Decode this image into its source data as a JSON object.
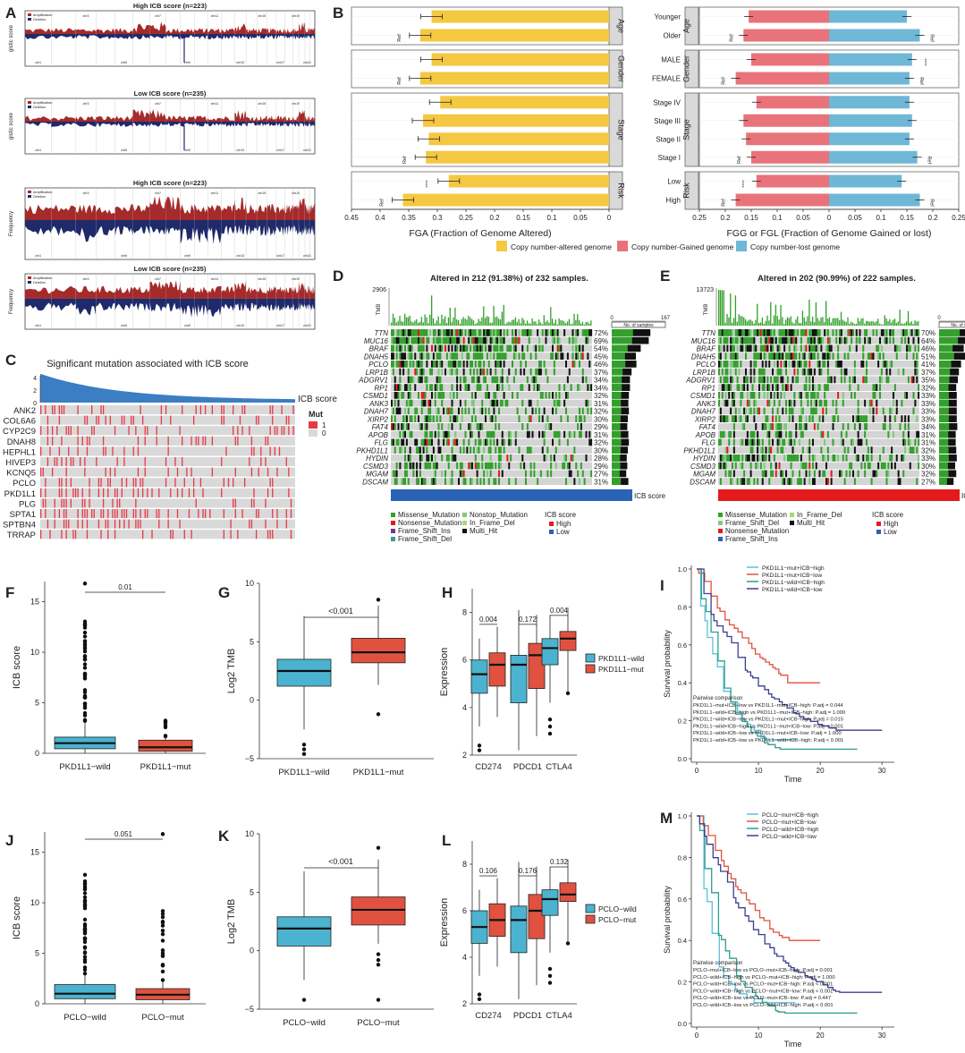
{
  "panel_labels": [
    "A",
    "B",
    "C",
    "D",
    "E",
    "F",
    "G",
    "H",
    "I",
    "J",
    "K",
    "L",
    "M"
  ],
  "panelA": {
    "titles": [
      "High ICB score (n=223)",
      "Low ICB score (n=235)",
      "High ICB score (n=223)",
      "Low ICB score (n=235)"
    ],
    "ylabel_gistic": "gistic score",
    "ylabel_freq": "Frequency",
    "legend": [
      "Amplification",
      "Deletion"
    ],
    "chromosomes": [
      "chr1",
      "chr2",
      "chr3",
      "chr4",
      "chr5",
      "chr6",
      "chr7",
      "chr8",
      "chr9",
      "chr10",
      "chr11",
      "chr12",
      "chr13",
      "chr14",
      "chr15",
      "chr16",
      "chr17",
      "chr18",
      "chr19",
      "chr20",
      "chr21",
      "chr22"
    ],
    "colors": {
      "amp": "#a52a2a",
      "del": "#1f2a6b"
    }
  },
  "panelB": {
    "chart_data": [
      {
        "type": "bar",
        "title": "",
        "xlabel": "FGA (Fraction of Genome Altered)",
        "xlim": [
          0.45,
          0
        ],
        "xticks": [
          "0.45",
          "0.4",
          "0.35",
          "0.3",
          "0.25",
          "0.2",
          "0.15",
          "0.1",
          "0.05",
          "0"
        ],
        "groups": [
          {
            "facet": "Age",
            "categories": [
              "Younger",
              "Older"
            ],
            "values": [
              0.31,
              0.33
            ],
            "sig": [
              "",
              "Ref"
            ]
          },
          {
            "facet": "Gender",
            "categories": [
              "MALE",
              "FEMALE"
            ],
            "values": [
              0.31,
              0.33
            ],
            "sig": [
              "",
              "Ref"
            ]
          },
          {
            "facet": "Stage",
            "categories": [
              "Stage IV",
              "Stage III",
              "Stage II",
              "Stage I"
            ],
            "values": [
              0.295,
              0.325,
              0.315,
              0.32
            ],
            "sig": [
              "",
              "",
              "",
              "Ref"
            ]
          },
          {
            "facet": "Risk",
            "categories": [
              "Low",
              "High"
            ],
            "values": [
              0.28,
              0.36
            ],
            "sig": [
              "****",
              "Ref"
            ]
          }
        ]
      },
      {
        "type": "bar",
        "xlabel": "FGG or FGL (Fraction of Genome Gained or lost)",
        "xlim": [
          -0.25,
          0.25
        ],
        "xticks": [
          "0.25",
          "0.2",
          "0.15",
          "0.1",
          "0.05",
          "0",
          "0.05",
          "0.1",
          "0.15",
          "0.2",
          "0.25"
        ],
        "groups": [
          {
            "facet": "Age",
            "categories": [
              "Younger",
              "Older"
            ],
            "gained": [
              0.155,
              0.165
            ],
            "lost": [
              0.15,
              0.175
            ],
            "sig_gain": [
              "",
              "Ref"
            ],
            "sig_lost": [
              "",
              "Ref"
            ]
          },
          {
            "facet": "Gender",
            "categories": [
              "MALE",
              "FEMALE"
            ],
            "gained": [
              0.15,
              0.18
            ],
            "lost": [
              0.16,
              0.155
            ],
            "sig_gain": [
              "",
              "Ref"
            ],
            "sig_lost": [
              "****",
              "Ref"
            ]
          },
          {
            "facet": "Stage",
            "categories": [
              "Stage IV",
              "Stage III",
              "Stage II",
              "Stage I"
            ],
            "gained": [
              0.14,
              0.165,
              0.16,
              0.15
            ],
            "lost": [
              0.155,
              0.16,
              0.155,
              0.17
            ],
            "sig_gain": [
              "",
              "",
              "",
              "Ref"
            ],
            "sig_lost": [
              "",
              "",
              "",
              "Ref"
            ]
          },
          {
            "facet": "Risk",
            "categories": [
              "Low",
              "High"
            ],
            "gained": [
              0.14,
              0.18
            ],
            "lost": [
              0.14,
              0.175
            ],
            "sig_gain": [
              "****",
              "Ref"
            ],
            "sig_lost": [
              "",
              "Ref"
            ]
          }
        ]
      }
    ],
    "legend": [
      {
        "label": "Copy number-altered genome",
        "color": "#f5c842"
      },
      {
        "label": "Copy number-Gained genome",
        "color": "#e8737a"
      },
      {
        "label": "Copy number-lost genome",
        "color": "#6fb7d6"
      }
    ]
  },
  "panelC": {
    "title": "Significant mutation associated with ICB score",
    "genes": [
      "ANK2",
      "COL6A6",
      "CYP2C9",
      "DNAH8",
      "HEPHL1",
      "HIVEP3",
      "KCNQ5",
      "PCLO",
      "PKD1L1",
      "PLG",
      "SPTA1",
      "SPTBN4",
      "TRRAP"
    ],
    "yticks": [
      "4",
      "2",
      "0"
    ],
    "legend_title": "Mut",
    "legend_items": [
      "1",
      "0"
    ],
    "score_label": "ICB score"
  },
  "panelD": {
    "title": "Altered in 212 (91.38%) of 232 samples.",
    "tmb_max": "2906",
    "tmb_label": "TMB",
    "bar_axis": [
      "0",
      "167"
    ],
    "bar_axis_label": "No. of samples",
    "genes": [
      "TTN",
      "MUC16",
      "BRAF",
      "DNAH5",
      "PCLO",
      "LRP1B",
      "ADGRV1",
      "RP1",
      "CSMD1",
      "ANK3",
      "DNAH7",
      "XIRP2",
      "FAT4",
      "APOB",
      "FLG",
      "PKHD1L1",
      "HYDIN",
      "CSMD3",
      "MGAM",
      "DSCAM"
    ],
    "pcts": [
      "72%",
      "69%",
      "54%",
      "45%",
      "46%",
      "37%",
      "34%",
      "34%",
      "32%",
      "31%",
      "32%",
      "30%",
      "29%",
      "31%",
      "32%",
      "30%",
      "28%",
      "29%",
      "27%",
      "31%"
    ],
    "score_label": "ICB score",
    "score_color": "#2a63b5",
    "legend": [
      "Missense_Mutation",
      "Nonsense_Mutation",
      "Frame_Shift_Ins",
      "Frame_Shift_Del",
      "Nonstop_Mutation",
      "In_Frame_Del",
      "Multi_Hit"
    ],
    "legend_colors": [
      "#33a02c",
      "#e31a1c",
      "#7b3294",
      "#3a9b8e",
      "#7fc97f",
      "#a6d96a",
      "#111111"
    ],
    "icb_legend": {
      "title": "ICB score",
      "items": [
        "High",
        "Low"
      ],
      "colors": [
        "#e41a1c",
        "#2a63b5"
      ]
    }
  },
  "panelE": {
    "title": "Altered in 202 (90.99%) of 222 samples.",
    "tmb_max": "13723",
    "tmb_label": "TMB",
    "bar_axis": [
      "0",
      "155"
    ],
    "bar_axis_label": "No. of samples",
    "genes": [
      "TTN",
      "MUC16",
      "BRAF",
      "DNAH5",
      "PCLO",
      "LRP1B",
      "ADGRV1",
      "RP1",
      "CSMD1",
      "ANK3",
      "DNAH7",
      "XIRP2",
      "FAT4",
      "APOB",
      "FLG",
      "PKHD1L1",
      "HYDIN",
      "CSMD3",
      "MGAM",
      "DSCAM"
    ],
    "pcts": [
      "70%",
      "64%",
      "46%",
      "51%",
      "41%",
      "37%",
      "35%",
      "32%",
      "33%",
      "33%",
      "33%",
      "33%",
      "34%",
      "31%",
      "31%",
      "32%",
      "33%",
      "30%",
      "32%",
      "27%"
    ],
    "score_label": "ICB score",
    "score_color": "#e41a1c",
    "legend": [
      "Missense_Mutation",
      "Frame_Shift_Del",
      "Nonsense_Mutation",
      "Frame_Shift_Ins",
      "In_Frame_Del",
      "Multi_Hit"
    ],
    "legend_colors": [
      "#33a02c",
      "#7fc97f",
      "#e31a1c",
      "#2a63b5",
      "#a6d96a",
      "#111111"
    ],
    "icb_legend": {
      "title": "ICB score",
      "items": [
        "High",
        "Low"
      ],
      "colors": [
        "#e41a1c",
        "#2a63b5"
      ]
    }
  },
  "panelF": {
    "chart_data": {
      "type": "box",
      "ylabel": "ICB score",
      "categories": [
        "PKD1L1−wild",
        "PKD1L1−mut"
      ],
      "ylim": [
        0,
        17
      ],
      "yticks": [
        "0",
        "5",
        "10",
        "15"
      ],
      "medians": [
        1.0,
        0.6
      ],
      "q1": [
        0.5,
        0.3
      ],
      "q3": [
        1.6,
        1.3
      ],
      "pvalue": "0.01"
    }
  },
  "panelG": {
    "chart_data": {
      "type": "box",
      "ylabel": "Log2 TMB",
      "categories": [
        "PKD1L1−wild",
        "PKD1L1−mut"
      ],
      "ylim": [
        -5,
        10
      ],
      "yticks": [
        "−5",
        "0",
        "5",
        "10"
      ],
      "medians": [
        2.5,
        4.1
      ],
      "q1": [
        1.2,
        3.2
      ],
      "q3": [
        3.5,
        5.3
      ],
      "pvalue": "<0.001"
    }
  },
  "panelH": {
    "chart_data": {
      "type": "box",
      "ylabel": "Expression",
      "categories": [
        "CD274",
        "PDCD1",
        "CTLA4"
      ],
      "ylim": [
        2,
        9
      ],
      "yticks": [
        "2",
        "4",
        "6",
        "8"
      ],
      "series": [
        {
          "name": "PKD1L1−wild",
          "medians": [
            5.4,
            5.8,
            6.5
          ]
        },
        {
          "name": "PKD1L1−mut",
          "medians": [
            5.8,
            6.2,
            6.9
          ]
        }
      ],
      "pvalues": [
        "0.004",
        "0.172",
        "0.004"
      ]
    }
  },
  "panelI": {
    "chart_data": {
      "type": "line",
      "xlabel": "Time",
      "ylabel": "Survival probability",
      "xticks": [
        "0",
        "10",
        "20",
        "30"
      ],
      "yticks": [
        "0.0",
        "0.2",
        "0.4",
        "0.6",
        "0.8",
        "1.0"
      ],
      "legend": [
        "PKD1L1−mut+ICB−high",
        "PKD1L1−mut+ICB−low",
        "PKD1L1−wild+ICB−high",
        "PKD1L1−wild+ICB−low"
      ]
    },
    "pairwise_title": "Pairwise comparison",
    "pairwise": [
      "PKD1L1−mut+ICB−low vs PKD1L1−mut+ICB−high: P.adj = 0.044",
      "PKD1L1−wild+ICB−high vs PKD1L1−mut+ICB−high: P.adj = 1.000",
      "PKD1L1−wild+ICB−low vs PKD1L1−mut+ICB−high: P.adj = 0.015",
      "PKD1L1−wild+ICB−high vs PKD1L1−mut+ICB−low: P.adj < 0.001",
      "PKD1L1−wild+ICB−low vs PKD1L1−mut+ICB−low: P.adj = 1.000",
      "PKD1L1−wild+ICB−low vs PKD1L1−wild+ICB−high: P.adj < 0.001"
    ]
  },
  "panelJ": {
    "chart_data": {
      "type": "box",
      "ylabel": "ICB score",
      "categories": [
        "PCLO−wild",
        "PCLO−mut"
      ],
      "ylim": [
        0,
        17
      ],
      "yticks": [
        "0",
        "5",
        "10",
        "15"
      ],
      "medians": [
        1.0,
        0.9
      ],
      "pvalue": "0.051"
    }
  },
  "panelK": {
    "chart_data": {
      "type": "box",
      "ylabel": "Log2 TMB",
      "categories": [
        "PCLO−wild",
        "PCLO−mut"
      ],
      "ylim": [
        -5,
        10
      ],
      "yticks": [
        "−5",
        "0",
        "5",
        "10"
      ],
      "medians": [
        1.9,
        3.5
      ],
      "pvalue": "<0.001"
    }
  },
  "panelL": {
    "chart_data": {
      "type": "box",
      "ylabel": "Expression",
      "categories": [
        "CD274",
        "PDCD1",
        "CTLA4"
      ],
      "ylim": [
        2,
        9
      ],
      "yticks": [
        "2",
        "4",
        "6",
        "8"
      ],
      "series": [
        {
          "name": "PCLO−wild",
          "medians": [
            5.3,
            5.6,
            6.5
          ]
        },
        {
          "name": "PCLO−mut",
          "medians": [
            5.6,
            6.0,
            6.7
          ]
        }
      ],
      "pvalues": [
        "0.106",
        "0.176",
        "0.132"
      ]
    }
  },
  "panelM": {
    "chart_data": {
      "type": "line",
      "xlabel": "Time",
      "ylabel": "Survival probability",
      "xticks": [
        "0",
        "10",
        "20",
        "30"
      ],
      "yticks": [
        "0.0",
        "0.2",
        "0.4",
        "0.6",
        "0.8",
        "1.0"
      ],
      "legend": [
        "PCLO−mut+ICB−high",
        "PCLO−mut+ICB−low",
        "PCLO−wild+ICB−high",
        "PCLO−wild+ICB−low"
      ]
    },
    "pairwise_title": "Pairwise comparison",
    "pairwise": [
      "PCLO−mut+ICB−low vs PCLO−mut+ICB−high: P.adj = 0.001",
      "PCLO−wild+ICB−high vs PCLO−mut+ICB−high: P.adj = 1.000",
      "PCLO−wild+ICB−low vs PCLO−mut+ICB−high: P.adj < 0.001",
      "PCLO−wild+ICB−high vs PCLO−mut+ICB−low: P.adj < 0.001",
      "PCLO−wild+ICB−low vs PCLO−mut+ICB−low: P.adj = 0.447",
      "PCLO−wild+ICB−low vs PCLO−wild+ICB−high: P.adj < 0.001"
    ]
  },
  "box_colors": {
    "wild": "#4bb3cf",
    "mut": "#e0523f"
  },
  "km_colors": [
    "#5bc0de",
    "#e0523f",
    "#2e9e8f",
    "#3b3f8f"
  ]
}
